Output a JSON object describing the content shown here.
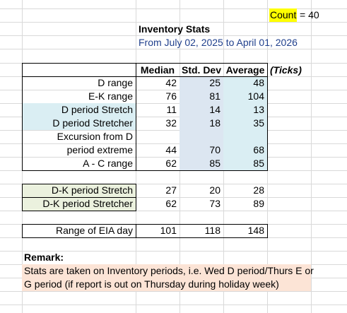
{
  "count": {
    "label": "Count",
    "equals": "= 40"
  },
  "title": "Inventory Stats",
  "date_range": "From July 02, 2025 to April 01, 2026",
  "headers": {
    "median": "Median",
    "std_dev": "Std. Dev",
    "average": "Average",
    "unit": "(Ticks)"
  },
  "table1": {
    "rows": [
      {
        "label": "D range",
        "median": "42",
        "std": "25",
        "avg": "48"
      },
      {
        "label": "E-K range",
        "median": "76",
        "std": "81",
        "avg": "104"
      },
      {
        "label": "D period Stretch",
        "median": "11",
        "std": "14",
        "avg": "13"
      },
      {
        "label": "D period Stretcher",
        "median": "32",
        "std": "18",
        "avg": "35"
      },
      {
        "label": "Excursion from D",
        "median": "",
        "std": "",
        "avg": ""
      },
      {
        "label": "period extreme",
        "median": "44",
        "std": "70",
        "avg": "68"
      },
      {
        "label": "A - C range",
        "median": "62",
        "std": "85",
        "avg": "85"
      }
    ]
  },
  "table2": {
    "rows": [
      {
        "label": "D-K period Stretch",
        "median": "27",
        "std": "20",
        "avg": "28"
      },
      {
        "label": "D-K period Stretcher",
        "median": "62",
        "std": "73",
        "avg": "89"
      }
    ]
  },
  "table3": {
    "rows": [
      {
        "label": "Range of EIA day",
        "median": "101",
        "std": "118",
        "avg": "148"
      }
    ]
  },
  "remark": {
    "title": "Remark:",
    "line1": "Stats are taken on Inventory periods, i.e. Wed D period/Thurs E or",
    "line2": "G period (if report is out on Thursday during holiday week)"
  },
  "colors": {
    "highlight_yellow": "#ffff00",
    "light_blue": "#daeef3",
    "gray_blue": "#dce6f1",
    "light_green": "#ebf1de",
    "peach": "#fce4d6",
    "title_blue": "#1f3f8c",
    "grid": "#d9d9d9"
  }
}
